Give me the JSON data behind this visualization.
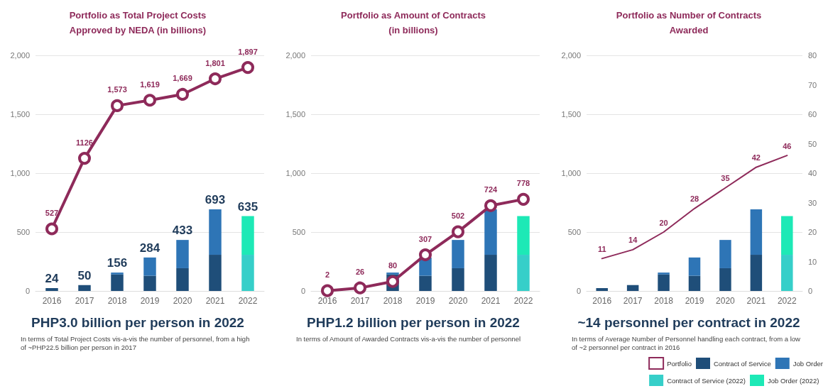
{
  "chart_data": [
    {
      "type": "bar",
      "title": "Portfolio as Total Project Costs\nApproved by NEDA (in billions)",
      "categories": [
        "2016",
        "2017",
        "2018",
        "2019",
        "2020",
        "2021",
        "2022"
      ],
      "stacked": true,
      "ylim": [
        0,
        2000
      ],
      "yticks": [
        {
          "value": 0,
          "label": "0"
        },
        {
          "value": 500,
          "label": "500"
        },
        {
          "value": 1000,
          "label": "1,000"
        },
        {
          "value": 1500,
          "label": "1,500"
        },
        {
          "value": 2000,
          "label": "2,000"
        }
      ],
      "grid": "y",
      "marker": "circle",
      "totals": [
        "24",
        "50",
        "156",
        "284",
        "433",
        "693",
        "635"
      ],
      "series": [
        {
          "color": "#1f4e79",
          "values": [
            24,
            50,
            140,
            129,
            193,
            307,
            null
          ]
        },
        {
          "color": "#2e75b6",
          "values": [
            null,
            null,
            16,
            155,
            240,
            386,
            null
          ]
        },
        {
          "color": "#36cfc9",
          "values": [
            null,
            null,
            null,
            null,
            null,
            null,
            307
          ]
        },
        {
          "color": "#1de9b6",
          "values": [
            null,
            null,
            null,
            null,
            null,
            null,
            328
          ]
        },
        {
          "type": "line",
          "color": "#8e2a5a",
          "values": [
            527,
            1126,
            1573,
            1619,
            1669,
            1801,
            1897
          ],
          "value_labels": [
            "527",
            "1126",
            "1,573",
            "1,619",
            "1,669",
            "1,801",
            "1,897"
          ]
        }
      ],
      "annotations": [
        "PHP3.0 billion per person in 2022",
        "In terms of Total Project Costs vis-a-vis the number of personnel, from a high of ~PHP22.5 billion per person in 2017"
      ]
    },
    {
      "type": "bar",
      "title": "Portfolio as Amount of Contracts\n(in billions)",
      "categories": [
        "2016",
        "2017",
        "2018",
        "2019",
        "2020",
        "2021",
        "2022"
      ],
      "stacked": true,
      "ylim": [
        0,
        2000
      ],
      "yticks": [
        {
          "value": 0,
          "label": "0"
        },
        {
          "value": 500,
          "label": "500"
        },
        {
          "value": 1000,
          "label": "1,000"
        },
        {
          "value": 1500,
          "label": "1,500"
        },
        {
          "value": 2000,
          "label": "2,000"
        }
      ],
      "grid": "y",
      "marker": "circle",
      "series": [
        {
          "color": "#1f4e79",
          "values": [
            null,
            null,
            140,
            129,
            193,
            307,
            null
          ]
        },
        {
          "color": "#2e75b6",
          "values": [
            null,
            null,
            16,
            155,
            240,
            386,
            null
          ]
        },
        {
          "color": "#36cfc9",
          "values": [
            null,
            null,
            null,
            null,
            null,
            null,
            307
          ]
        },
        {
          "color": "#1de9b6",
          "values": [
            null,
            null,
            null,
            null,
            null,
            null,
            328
          ]
        },
        {
          "type": "line",
          "color": "#8e2a5a",
          "values": [
            2,
            26,
            80,
            307,
            502,
            724,
            778
          ],
          "value_labels": [
            "2",
            "26",
            "80",
            "307",
            "502",
            "724",
            "778"
          ]
        }
      ],
      "annotations": [
        "PHP1.2 billion per person in 2022",
        "In terms of Amount of Awarded Contracts vis-a-vis the number of personnel"
      ]
    },
    {
      "type": "bar",
      "title": "Portfolio as Number of Contracts\nAwarded",
      "categories": [
        "2016",
        "2017",
        "2018",
        "2019",
        "2020",
        "2021",
        "2022"
      ],
      "stacked": true,
      "ylim": [
        0,
        2000
      ],
      "yticks": [
        {
          "value": 0,
          "label": "0"
        },
        {
          "value": 500,
          "label": "500"
        },
        {
          "value": 1000,
          "label": "1,000"
        },
        {
          "value": 1500,
          "label": "1,500"
        },
        {
          "value": 2000,
          "label": "2,000"
        }
      ],
      "y2lim": [
        0,
        80
      ],
      "y2ticks": [
        0,
        10,
        20,
        30,
        40,
        50,
        60,
        70,
        80
      ],
      "grid": "y",
      "marker": "none",
      "legend": "bottom right",
      "series": [
        {
          "type": "line",
          "name": "Portfolio",
          "color": "#8e2a5a",
          "axis": "y2",
          "values": [
            11,
            14,
            20,
            28,
            35,
            42,
            46
          ],
          "value_labels": [
            "11",
            "14",
            "20",
            "28",
            "35",
            "42",
            "46"
          ]
        },
        {
          "name": "Contract of Service",
          "color": "#1f4e79",
          "values": [
            24,
            50,
            140,
            129,
            193,
            307,
            null
          ]
        },
        {
          "name": "Job Order",
          "color": "#2e75b6",
          "values": [
            null,
            null,
            16,
            155,
            240,
            386,
            null
          ]
        },
        {
          "name": "Contract of Service (2022)",
          "color": "#36cfc9",
          "values": [
            null,
            null,
            null,
            null,
            null,
            null,
            307
          ]
        },
        {
          "name": "Job Order (2022)",
          "color": "#1de9b6",
          "values": [
            null,
            null,
            null,
            null,
            null,
            null,
            328
          ]
        }
      ],
      "annotations": [
        "~14 personnel per contract in 2022",
        "In terms of Average Number of Personnel handling each contract, from a low of ~2 personnel per contract in 2016"
      ]
    }
  ]
}
